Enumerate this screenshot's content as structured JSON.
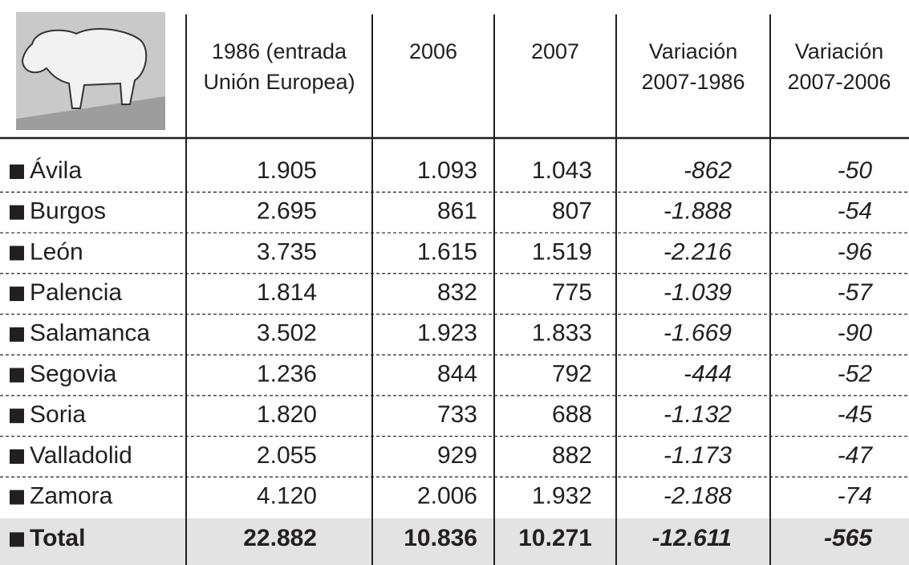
{
  "table": {
    "header": [
      [
        "1986 (entrada",
        "Unión Europea)"
      ],
      [
        "2006"
      ],
      [
        "2007"
      ],
      [
        "Variación",
        "2007-1986"
      ],
      [
        "Variación",
        "2007-2006"
      ]
    ],
    "rows": [
      {
        "name": "Ávila",
        "values": [
          "1.905",
          "1.093",
          "1.043",
          "-862",
          "-50"
        ]
      },
      {
        "name": "Burgos",
        "values": [
          "2.695",
          "861",
          "807",
          "-1.888",
          "-54"
        ]
      },
      {
        "name": "León",
        "values": [
          "3.735",
          "1.615",
          "1.519",
          "-2.216",
          "-96"
        ]
      },
      {
        "name": "Palencia",
        "values": [
          "1.814",
          "832",
          "775",
          "-1.039",
          "-57"
        ]
      },
      {
        "name": "Salamanca",
        "values": [
          "3.502",
          "1.923",
          "1.833",
          "-1.669",
          "-90"
        ]
      },
      {
        "name": "Segovia",
        "values": [
          "1.236",
          "844",
          "792",
          "-444",
          "-52"
        ]
      },
      {
        "name": "Soria",
        "values": [
          "1.820",
          "733",
          "688",
          "-1.132",
          "-45"
        ]
      },
      {
        "name": "Valladolid",
        "values": [
          "2.055",
          "929",
          "882",
          "-1.173",
          "-47"
        ]
      },
      {
        "name": "Zamora",
        "values": [
          "4.120",
          "2.006",
          "1.932",
          "-2.188",
          "-74"
        ]
      }
    ],
    "total": {
      "name": "Total",
      "values": [
        "22.882",
        "10.836",
        "10.271",
        "-12.611",
        "-565"
      ]
    }
  }
}
